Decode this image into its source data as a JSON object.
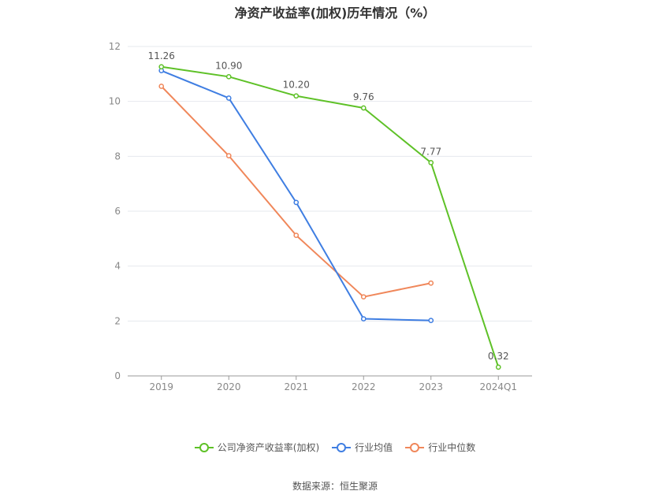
{
  "chart_data": {
    "type": "line",
    "title": "净资产收益率(加权)历年情况（%）",
    "categories": [
      "2019",
      "2020",
      "2021",
      "2022",
      "2023",
      "2024Q1"
    ],
    "ylim": [
      0,
      12
    ],
    "yticks": [
      0,
      2,
      4,
      6,
      8,
      10,
      12
    ],
    "grid": true,
    "legend_position": "bottom",
    "series": [
      {
        "name": "公司净资产收益率(加权)",
        "color": "#5ec127",
        "values": [
          11.26,
          10.9,
          10.2,
          9.76,
          7.77,
          0.32
        ],
        "labels": [
          "11.26",
          "10.90",
          "10.20",
          "9.76",
          "7.77",
          "0.32"
        ]
      },
      {
        "name": "行业均值",
        "color": "#3f7ee2",
        "values": [
          11.12,
          10.12,
          6.32,
          2.08,
          2.02,
          null
        ]
      },
      {
        "name": "行业中位数",
        "color": "#f0875a",
        "values": [
          10.55,
          8.02,
          5.12,
          2.88,
          3.38,
          null
        ]
      }
    ]
  },
  "footer": {
    "source": "数据来源：恒生聚源"
  }
}
